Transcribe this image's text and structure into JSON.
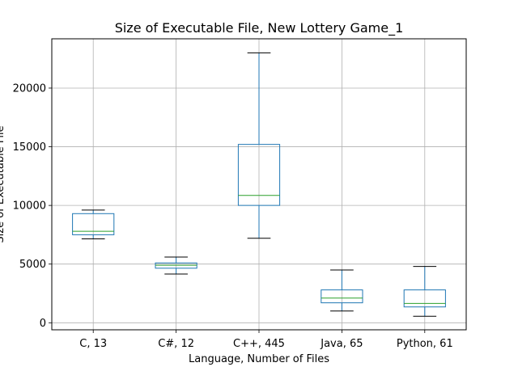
{
  "chart_data": {
    "type": "box",
    "title": "Size of Executable File, New Lottery Game_1",
    "xlabel": "Language, Number of Files",
    "ylabel": "Size of Executable File",
    "ylim": [
      -600,
      24200
    ],
    "yticks": [
      0,
      5000,
      10000,
      15000,
      20000
    ],
    "grid": true,
    "categories": [
      "C, 13",
      "C#, 12",
      "C++, 445",
      "Java, 65",
      "Python, 61"
    ],
    "boxes": [
      {
        "whisker_low": 7150,
        "q1": 7500,
        "median": 7800,
        "q3": 9300,
        "whisker_high": 9600
      },
      {
        "whisker_low": 4150,
        "q1": 4650,
        "median": 4900,
        "q3": 5100,
        "whisker_high": 5600
      },
      {
        "whisker_low": 7200,
        "q1": 10000,
        "median": 10850,
        "q3": 15200,
        "whisker_high": 23000
      },
      {
        "whisker_low": 1000,
        "q1": 1700,
        "median": 2100,
        "q3": 2800,
        "whisker_high": 4500
      },
      {
        "whisker_low": 550,
        "q1": 1350,
        "median": 1650,
        "q3": 2800,
        "whisker_high": 4800
      }
    ],
    "colors": {
      "box": "#1f77b4",
      "median": "#2ca02c",
      "whisker_cap": "#000000",
      "grid": "#b0b0b0"
    }
  }
}
